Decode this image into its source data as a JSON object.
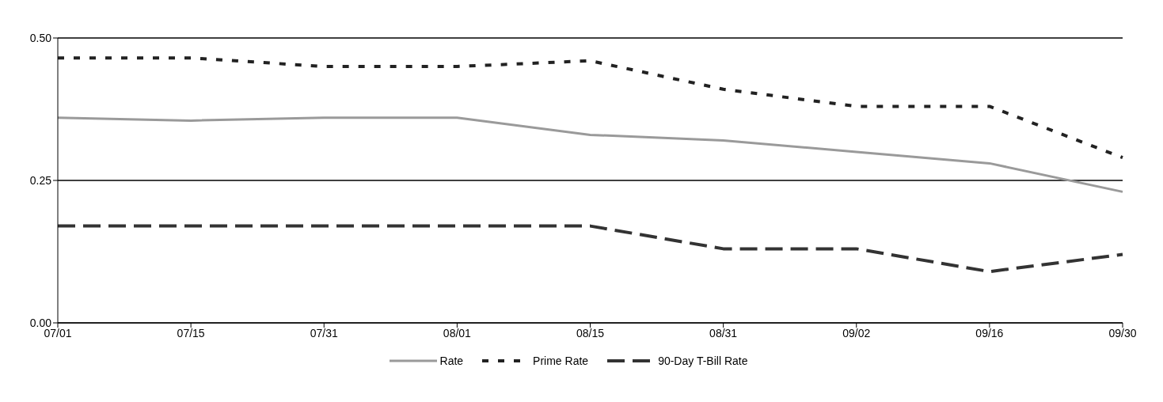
{
  "chart_data": {
    "type": "line",
    "categories": [
      "07/01",
      "07/15",
      "07/31",
      "08/01",
      "08/15",
      "08/31",
      "09/02",
      "09/16",
      "09/30"
    ],
    "series": [
      {
        "name": "Rate",
        "color": "#9a9a9a",
        "line_style": "solid",
        "values": [
          0.36,
          0.355,
          0.36,
          0.36,
          0.33,
          0.32,
          0.3,
          0.28,
          0.23
        ]
      },
      {
        "name": "Prime Rate",
        "color": "#222222",
        "line_style": "dotted",
        "values": [
          0.465,
          0.465,
          0.45,
          0.45,
          0.46,
          0.41,
          0.38,
          0.38,
          0.29
        ]
      },
      {
        "name": "90-Day T-Bill Rate",
        "color": "#333333",
        "line_style": "dashed",
        "values": [
          0.17,
          0.17,
          0.17,
          0.17,
          0.17,
          0.13,
          0.13,
          0.09,
          0.12
        ]
      }
    ],
    "ylim": [
      0,
      0.5
    ],
    "yticks": [
      {
        "value": 0,
        "label": "0.00"
      },
      {
        "value": 0.25,
        "label": "0.25"
      },
      {
        "value": 0.5,
        "label": "0.50"
      }
    ],
    "grid": "y",
    "legend": "bottom",
    "marker": "none"
  }
}
